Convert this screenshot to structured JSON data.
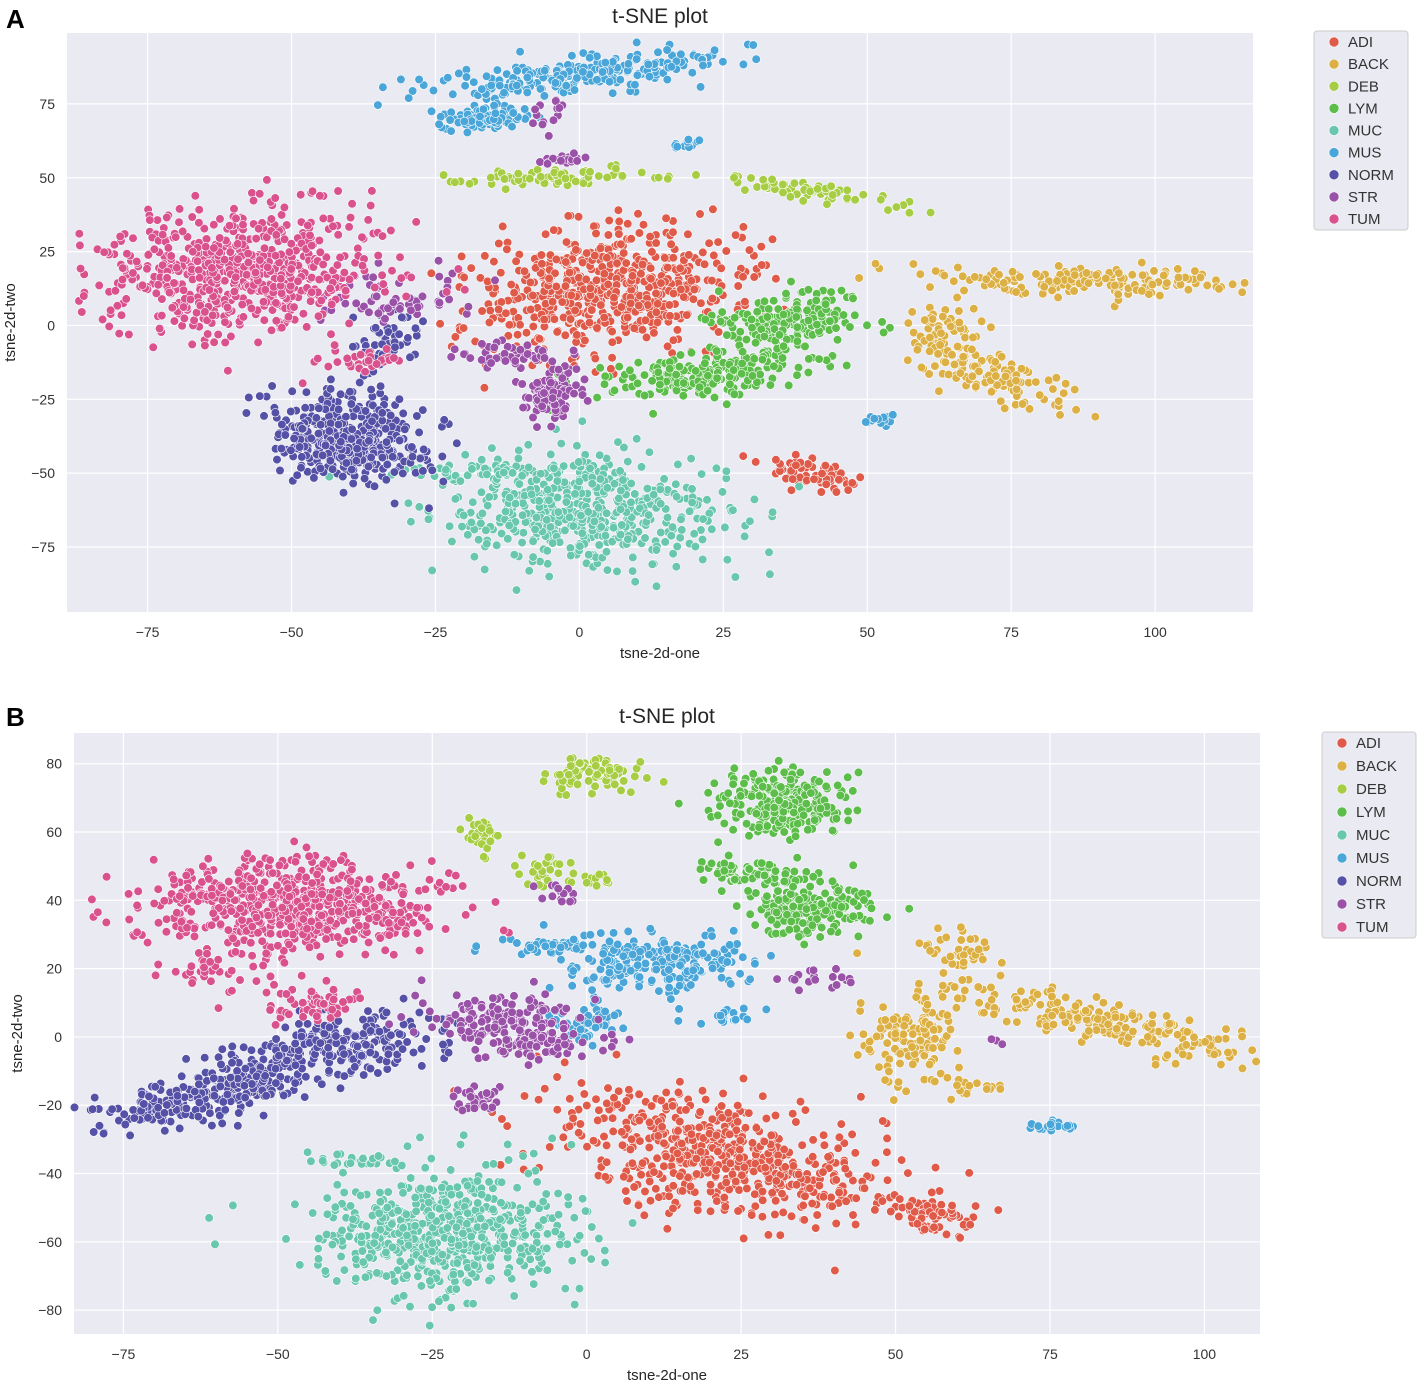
{
  "figure": {
    "panels": [
      "A",
      "B"
    ]
  },
  "chart_data": [
    {
      "panel": "A",
      "type": "scatter",
      "title": "t-SNE plot",
      "xlabel": "tsne-2d-one",
      "ylabel": "tsne-2d-two",
      "xlim": [
        -89,
        117
      ],
      "ylim": [
        -97,
        99
      ],
      "xticks": [
        -75,
        -50,
        -25,
        0,
        25,
        50,
        75,
        100
      ],
      "yticks": [
        75,
        50,
        25,
        0,
        -25,
        -50,
        -75
      ],
      "xtick_labels": [
        "−75",
        "−50",
        "−25",
        "0",
        "25",
        "50",
        "75",
        "100"
      ],
      "ytick_labels": [
        "75",
        "50",
        "25",
        "0",
        "−25",
        "−50",
        "−75"
      ],
      "legend": [
        "ADI",
        "BACK",
        "DEB",
        "LYM",
        "MUC",
        "MUS",
        "NORM",
        "STR",
        "TUM"
      ],
      "colors": {
        "ADI": "#e05a4a",
        "BACK": "#dcb044",
        "DEB": "#a7cd45",
        "LYM": "#5cbd4a",
        "MUC": "#69c7ad",
        "MUS": "#4aa5d8",
        "NORM": "#5551a6",
        "STR": "#9a52a8",
        "TUM": "#d9528e"
      },
      "series": [
        {
          "name": "ADI",
          "clusters": [
            {
              "cx": 5,
              "cy": 12,
              "sx": 13,
              "sy": 10,
              "rot": 26,
              "n": 600
            },
            {
              "cx": 40,
              "cy": -50,
              "sx": 5,
              "sy": 2.2,
              "rot": -30,
              "n": 70
            }
          ]
        },
        {
          "name": "BACK",
          "clusters": [
            {
              "cx": 90,
              "cy": 15,
              "sx": 13,
              "sy": 2.5,
              "rot": -3,
              "n": 170
            },
            {
              "cx": 64,
              "cy": -2,
              "sx": 3,
              "sy": 6,
              "rot": 0,
              "n": 70
            },
            {
              "cx": 73,
              "cy": -18,
              "sx": 3.5,
              "sy": 7,
              "rot": 55,
              "n": 100
            }
          ]
        },
        {
          "name": "DEB",
          "clusters": [
            {
              "cx": -3,
              "cy": 50,
              "sx": 9,
              "sy": 1.4,
              "rot": 4,
              "n": 80
            },
            {
              "cx": 41,
              "cy": 45,
              "sx": 10,
              "sy": 1.6,
              "rot": -16,
              "n": 60
            }
          ]
        },
        {
          "name": "LYM",
          "clusters": [
            {
              "cx": 36,
              "cy": 3,
              "sx": 7,
              "sy": 4.5,
              "rot": 10,
              "n": 180
            },
            {
              "cx": 24,
              "cy": -16,
              "sx": 10,
              "sy": 4,
              "rot": 15,
              "n": 220
            }
          ]
        },
        {
          "name": "MUC",
          "clusters": [
            {
              "cx": 0,
              "cy": -62,
              "sx": 12,
              "sy": 9,
              "rot": -8,
              "n": 560
            },
            {
              "cx": -20,
              "cy": -50,
              "sx": 6,
              "sy": 1.5,
              "rot": 0,
              "n": 40
            }
          ]
        },
        {
          "name": "MUS",
          "clusters": [
            {
              "cx": 0,
              "cy": 85,
              "sx": 13,
              "sy": 3,
              "rot": 10,
              "n": 240
            },
            {
              "cx": -17,
              "cy": 70,
              "sx": 4,
              "sy": 2,
              "rot": 10,
              "n": 80
            },
            {
              "cx": 19,
              "cy": 62,
              "sx": 1,
              "sy": 1.5,
              "rot": 0,
              "n": 12
            },
            {
              "cx": 52,
              "cy": -32,
              "sx": 2,
              "sy": 1,
              "rot": -20,
              "n": 14
            }
          ]
        },
        {
          "name": "NORM",
          "clusters": [
            {
              "cx": -40,
              "cy": -38,
              "sx": 6,
              "sy": 8,
              "rot": 25,
              "n": 420
            },
            {
              "cx": -33,
              "cy": -5,
              "sx": 4,
              "sy": 5,
              "rot": 0,
              "n": 50
            }
          ]
        },
        {
          "name": "STR",
          "clusters": [
            {
              "cx": -5,
              "cy": -23,
              "sx": 3,
              "sy": 4,
              "rot": 0,
              "n": 100
            },
            {
              "cx": -12,
              "cy": -10,
              "sx": 5,
              "sy": 2,
              "rot": 0,
              "n": 50
            },
            {
              "cx": -3,
              "cy": 56,
              "sx": 2.5,
              "sy": 1,
              "rot": 0,
              "n": 18
            },
            {
              "cx": -33,
              "cy": 8,
              "sx": 6,
              "sy": 5,
              "rot": 0,
              "n": 60
            },
            {
              "cx": -5,
              "cy": 72,
              "sx": 2,
              "sy": 3,
              "rot": 0,
              "n": 14
            }
          ]
        },
        {
          "name": "TUM",
          "clusters": [
            {
              "cx": -58,
              "cy": 18,
              "sx": 13,
              "sy": 10,
              "rot": 14,
              "n": 700
            },
            {
              "cx": -38,
              "cy": -12,
              "sx": 3,
              "sy": 2,
              "rot": 0,
              "n": 30
            }
          ]
        }
      ]
    },
    {
      "panel": "B",
      "type": "scatter",
      "title": "t-SNE plot",
      "xlabel": "tsne-2d-one",
      "ylabel": "tsne-2d-two",
      "xlim": [
        -83,
        109
      ],
      "ylim": [
        -87,
        89
      ],
      "xticks": [
        -75,
        -50,
        -25,
        0,
        25,
        50,
        75,
        100
      ],
      "yticks": [
        80,
        60,
        40,
        20,
        0,
        -20,
        -40,
        -60,
        -80
      ],
      "xtick_labels": [
        "−75",
        "−50",
        "−25",
        "0",
        "25",
        "50",
        "75",
        "100"
      ],
      "ytick_labels": [
        "80",
        "60",
        "40",
        "20",
        "0",
        "−20",
        "−40",
        "−60",
        "−80"
      ],
      "legend": [
        "ADI",
        "BACK",
        "DEB",
        "LYM",
        "MUC",
        "MUS",
        "NORM",
        "STR",
        "TUM"
      ],
      "colors": {
        "ADI": "#e05a4a",
        "BACK": "#dcb044",
        "DEB": "#a7cd45",
        "LYM": "#5cbd4a",
        "MUC": "#69c7ad",
        "MUS": "#4aa5d8",
        "NORM": "#5551a6",
        "STR": "#9a52a8",
        "TUM": "#d9528e"
      },
      "series": [
        {
          "name": "ADI",
          "clusters": [
            {
              "cx": 22,
              "cy": -35,
              "sx": 14,
              "sy": 8,
              "rot": -25,
              "n": 600
            },
            {
              "cx": 56,
              "cy": -52,
              "sx": 4,
              "sy": 2.5,
              "rot": -25,
              "n": 70
            }
          ]
        },
        {
          "name": "BACK",
          "clusters": [
            {
              "cx": 82,
              "cy": 5,
              "sx": 14,
              "sy": 3,
              "rot": -22,
              "n": 220
            },
            {
              "cx": 53,
              "cy": 0,
              "sx": 4,
              "sy": 6,
              "rot": 0,
              "n": 130
            },
            {
              "cx": 61,
              "cy": 25,
              "sx": 3,
              "sy": 3,
              "rot": 0,
              "n": 40
            },
            {
              "cx": 61,
              "cy": -15,
              "sx": 3,
              "sy": 2,
              "rot": 0,
              "n": 20
            }
          ]
        },
        {
          "name": "DEB",
          "clusters": [
            {
              "cx": 1,
              "cy": 77,
              "sx": 4,
              "sy": 2.2,
              "rot": 0,
              "n": 90
            },
            {
              "cx": -17,
              "cy": 59,
              "sx": 1.5,
              "sy": 3,
              "rot": 0,
              "n": 30
            },
            {
              "cx": -7,
              "cy": 49,
              "sx": 2,
              "sy": 2.5,
              "rot": 0,
              "n": 30
            },
            {
              "cx": 2,
              "cy": 46,
              "sx": 2,
              "sy": 1,
              "rot": 0,
              "n": 12
            }
          ]
        },
        {
          "name": "LYM",
          "clusters": [
            {
              "cx": 32,
              "cy": 68,
              "sx": 5,
              "sy": 5,
              "rot": 0,
              "n": 260
            },
            {
              "cx": 36,
              "cy": 38,
              "sx": 5,
              "sy": 4,
              "rot": 0,
              "n": 200
            },
            {
              "cx": 26,
              "cy": 48,
              "sx": 5,
              "sy": 2,
              "rot": 0,
              "n": 60
            }
          ]
        },
        {
          "name": "MUC",
          "clusters": [
            {
              "cx": -24,
              "cy": -57,
              "sx": 10,
              "sy": 9,
              "rot": 0,
              "n": 600
            },
            {
              "cx": -36,
              "cy": -36,
              "sx": 4,
              "sy": 1.5,
              "rot": 0,
              "n": 30
            }
          ]
        },
        {
          "name": "MUS",
          "clusters": [
            {
              "cx": 12,
              "cy": 22,
              "sx": 8,
              "sy": 4,
              "rot": 0,
              "n": 220
            },
            {
              "cx": -5,
              "cy": 27,
              "sx": 4,
              "sy": 1,
              "rot": 0,
              "n": 40
            },
            {
              "cx": 0,
              "cy": 4,
              "sx": 2.5,
              "sy": 3,
              "rot": 0,
              "n": 60
            },
            {
              "cx": 23,
              "cy": 6,
              "sx": 3,
              "sy": 1,
              "rot": 15,
              "n": 20
            },
            {
              "cx": 76,
              "cy": -26,
              "sx": 2,
              "sy": 0.8,
              "rot": 0,
              "n": 20
            }
          ]
        },
        {
          "name": "NORM",
          "clusters": [
            {
              "cx": -60,
              "cy": -16,
              "sx": 10,
              "sy": 3.5,
              "rot": 25,
              "n": 300
            },
            {
              "cx": -38,
              "cy": -2,
              "sx": 8,
              "sy": 5,
              "rot": 10,
              "n": 200
            }
          ]
        },
        {
          "name": "STR",
          "clusters": [
            {
              "cx": -13,
              "cy": 5,
              "sx": 7,
              "sy": 4,
              "rot": -10,
              "n": 160
            },
            {
              "cx": -8,
              "cy": -2,
              "sx": 4,
              "sy": 2,
              "rot": 0,
              "n": 60
            },
            {
              "cx": -18,
              "cy": -18,
              "sx": 2,
              "sy": 2,
              "rot": 0,
              "n": 30
            },
            {
              "cx": -5,
              "cy": 42,
              "sx": 1.5,
              "sy": 2,
              "rot": 0,
              "n": 15
            },
            {
              "cx": 37,
              "cy": 17,
              "sx": 3,
              "sy": 1.5,
              "rot": 0,
              "n": 20
            },
            {
              "cx": 66,
              "cy": -1,
              "sx": 1,
              "sy": 0.6,
              "rot": 0,
              "n": 3
            }
          ]
        },
        {
          "name": "TUM",
          "clusters": [
            {
              "cx": -48,
              "cy": 38,
              "sx": 12,
              "sy": 7,
              "rot": 0,
              "n": 700
            },
            {
              "cx": -62,
              "cy": 20,
              "sx": 2,
              "sy": 2,
              "rot": 0,
              "n": 25
            },
            {
              "cx": -45,
              "cy": 10,
              "sx": 5,
              "sy": 3,
              "rot": 0,
              "n": 60
            }
          ]
        }
      ]
    }
  ]
}
